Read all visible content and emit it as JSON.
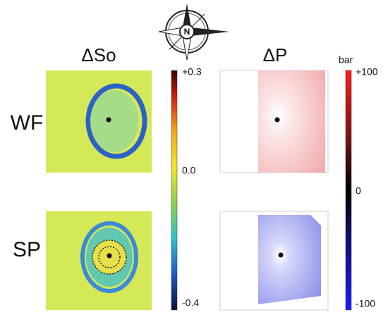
{
  "columns": [
    "ΔSo",
    "ΔP"
  ],
  "rows": [
    "WF",
    "SP"
  ],
  "colorbars": [
    {
      "ticks": [
        "+0.3",
        "0.0",
        "-0.4"
      ]
    },
    {
      "unit": "bar",
      "ticks": [
        "+100",
        "0",
        "-100"
      ]
    }
  ],
  "compass": "N"
}
